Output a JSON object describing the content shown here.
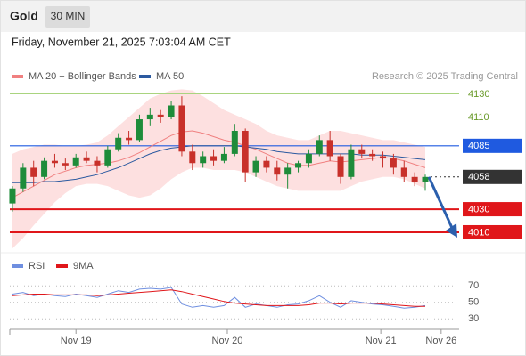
{
  "header": {
    "symbol": "Gold",
    "timeframe": "30 MIN",
    "datetime": "Friday, November 21, 2025 7:03:04 AM CET"
  },
  "chart_data": [
    {
      "type": "candlestick",
      "credit": "Research © 2025 Trading Central",
      "up_color": "#1e8c3a",
      "down_color": "#c8302a",
      "open": [
        4035,
        4048,
        4066,
        4058,
        4072,
        4070,
        4068,
        4075,
        4072,
        4068,
        4082,
        4092,
        4090,
        4108,
        4112,
        4110,
        4120,
        4080,
        4070,
        4076,
        4072,
        4078,
        4098,
        4062,
        4072,
        4066,
        4060,
        4066,
        4070,
        4078,
        4090,
        4076,
        4058,
        4082,
        4078,
        4076,
        4074,
        4066,
        4058,
        4054
      ],
      "high": [
        4050,
        4070,
        4072,
        4075,
        4078,
        4074,
        4078,
        4080,
        4076,
        4085,
        4096,
        4098,
        4112,
        4118,
        4116,
        4124,
        4128,
        4086,
        4080,
        4082,
        4084,
        4104,
        4100,
        4076,
        4076,
        4072,
        4070,
        4072,
        4082,
        4094,
        4098,
        4078,
        4086,
        4086,
        4082,
        4080,
        4078,
        4072,
        4062,
        4060
      ],
      "low": [
        4028,
        4045,
        4050,
        4056,
        4066,
        4064,
        4066,
        4070,
        4062,
        4066,
        4080,
        4086,
        4088,
        4102,
        4105,
        4108,
        4076,
        4064,
        4066,
        4068,
        4070,
        4076,
        4054,
        4058,
        4062,
        4055,
        4048,
        4062,
        4066,
        4076,
        4072,
        4052,
        4056,
        4074,
        4072,
        4066,
        4060,
        4054,
        4050,
        4046
      ],
      "close": [
        4048,
        4066,
        4058,
        4072,
        4070,
        4068,
        4075,
        4072,
        4068,
        4082,
        4092,
        4090,
        4108,
        4112,
        4110,
        4120,
        4080,
        4070,
        4076,
        4072,
        4078,
        4098,
        4062,
        4072,
        4066,
        4060,
        4066,
        4070,
        4078,
        4090,
        4076,
        4058,
        4082,
        4078,
        4076,
        4074,
        4066,
        4058,
        4054,
        4058
      ],
      "overlays": [
        {
          "name": "MA 20 + Bollinger Bands",
          "color": "#f08080",
          "band_color": "#fde0e0",
          "values": [
            4040,
            4045,
            4050,
            4055,
            4060,
            4063,
            4066,
            4068,
            4069,
            4070,
            4072,
            4075,
            4079,
            4084,
            4089,
            4094,
            4097,
            4098,
            4096,
            4093,
            4090,
            4088,
            4085,
            4082,
            4078,
            4074,
            4070,
            4068,
            4068,
            4070,
            4072,
            4071,
            4072,
            4073,
            4074,
            4075,
            4074,
            4072,
            4069,
            4066
          ],
          "upper": [
            4078,
            4082,
            4084,
            4086,
            4086,
            4085,
            4085,
            4086,
            4088,
            4094,
            4102,
            4110,
            4118,
            4126,
            4130,
            4133,
            4134,
            4133,
            4128,
            4122,
            4116,
            4112,
            4108,
            4104,
            4098,
            4094,
            4092,
            4090,
            4090,
            4094,
            4098,
            4098,
            4096,
            4094,
            4092,
            4090,
            4090,
            4088,
            4086,
            4084
          ],
          "lower": [
            3996,
            4005,
            4016,
            4026,
            4036,
            4044,
            4050,
            4052,
            4052,
            4050,
            4046,
            4042,
            4040,
            4042,
            4048,
            4056,
            4062,
            4066,
            4066,
            4064,
            4064,
            4064,
            4062,
            4058,
            4054,
            4050,
            4048,
            4046,
            4046,
            4046,
            4046,
            4046,
            4050,
            4054,
            4056,
            4058,
            4058,
            4056,
            4052,
            4048
          ]
        },
        {
          "name": "MA 50",
          "color": "#2c5aa0",
          "values": [
            4053,
            4053,
            4053,
            4054,
            4054,
            4055,
            4056,
            4058,
            4060,
            4063,
            4066,
            4070,
            4074,
            4078,
            4081,
            4083,
            4084,
            4085,
            4085,
            4085,
            4085,
            4085,
            4084,
            4083,
            4082,
            4080,
            4079,
            4078,
            4078,
            4078,
            4078,
            4078,
            4078,
            4077,
            4077,
            4077,
            4076,
            4075,
            4074,
            4073
          ]
        }
      ],
      "levels": [
        {
          "value": 4130,
          "color": "#a9d47f",
          "boxed": false
        },
        {
          "value": 4110,
          "color": "#a9d47f",
          "boxed": false
        },
        {
          "value": 4085,
          "color": "#1f5ae0",
          "boxed": true
        },
        {
          "value": 4058,
          "color": "#333333",
          "boxed": true,
          "dotted": true
        },
        {
          "value": 4030,
          "color": "#e0161a",
          "boxed": true
        },
        {
          "value": 4010,
          "color": "#e0161a",
          "boxed": true
        }
      ],
      "ylim": [
        3993,
        4142
      ],
      "xlim": [
        -0.25,
        42.2
      ],
      "xticks": [
        {
          "value": 6,
          "label": "Nov 19"
        },
        {
          "value": 20.3,
          "label": "Nov 20"
        },
        {
          "value": 34.8,
          "label": "Nov 21"
        },
        {
          "value": 40.5,
          "label": "Nov 26"
        }
      ]
    },
    {
      "type": "line",
      "series": [
        {
          "name": "RSI",
          "color": "#6f8fe0",
          "values": [
            60,
            62,
            58,
            60,
            58,
            57,
            60,
            58,
            56,
            60,
            64,
            62,
            66,
            67,
            66,
            68,
            48,
            44,
            46,
            44,
            46,
            56,
            44,
            48,
            46,
            44,
            47,
            48,
            52,
            58,
            50,
            44,
            52,
            50,
            48,
            47,
            45,
            43,
            44,
            46
          ]
        },
        {
          "name": "9MA",
          "color": "#e0161a",
          "values": [
            58,
            59,
            60,
            60,
            59,
            59,
            59,
            59,
            58,
            59,
            60,
            61,
            62,
            63,
            64,
            65,
            63,
            60,
            57,
            54,
            51,
            49,
            48,
            47,
            46,
            46,
            46,
            46,
            47,
            49,
            49,
            48,
            49,
            49,
            49,
            48,
            47,
            46,
            45,
            45
          ]
        }
      ],
      "ylim": [
        20,
        81
      ],
      "yticks": [
        30,
        50,
        70
      ],
      "xlim": [
        -0.25,
        42.2
      ]
    }
  ]
}
